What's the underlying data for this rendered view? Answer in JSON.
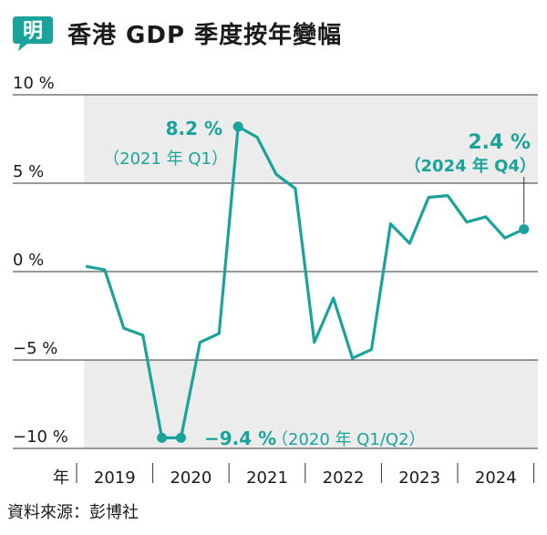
{
  "header": {
    "logo_char": "明",
    "title": "香港 GDP 季度按年變幅"
  },
  "source": "資料來源：彭博社",
  "colors": {
    "line": "#1aa39b",
    "shade": "#ececec",
    "logo": "#1aa39b",
    "text": "#1a1a1a"
  },
  "chart_data": {
    "type": "line",
    "title": "香港 GDP 季度按年變幅",
    "xlabel": "年",
    "ylabel": "",
    "unit": "%",
    "ylim": [
      -10,
      10
    ],
    "yticks": [
      {
        "value": 10,
        "label": "10 %"
      },
      {
        "value": 5,
        "label": "5 %"
      },
      {
        "value": 0,
        "label": "0 %"
      },
      {
        "value": -5,
        "label": "−5 %"
      },
      {
        "value": -10,
        "label": "−10 %"
      }
    ],
    "years": [
      "2019",
      "2020",
      "2021",
      "2022",
      "2023",
      "2024"
    ],
    "x": [
      "2019 Q1",
      "2019 Q2",
      "2019 Q3",
      "2019 Q4",
      "2020 Q1",
      "2020 Q2",
      "2020 Q3",
      "2020 Q4",
      "2021 Q1",
      "2021 Q2",
      "2021 Q3",
      "2021 Q4",
      "2022 Q1",
      "2022 Q2",
      "2022 Q3",
      "2022 Q4",
      "2023 Q1",
      "2023 Q2",
      "2023 Q3",
      "2023 Q4",
      "2024 Q1",
      "2024 Q2",
      "2024 Q3",
      "2024 Q4"
    ],
    "values": [
      0.3,
      0.1,
      -3.2,
      -3.6,
      -9.4,
      -9.4,
      -4.0,
      -3.5,
      8.2,
      7.6,
      5.5,
      4.7,
      -4.0,
      -1.5,
      -4.9,
      -4.4,
      2.7,
      1.6,
      4.2,
      4.3,
      2.8,
      3.1,
      1.9,
      2.4
    ],
    "grid": true,
    "annotations": {
      "peak": {
        "value": "8.2 %",
        "period": "（2021 年 Q1）"
      },
      "trough": {
        "value": "−9.4 %",
        "period": "（2020 年 Q1/Q2）"
      },
      "latest": {
        "value": "2.4 %",
        "period": "（2024 年 Q4）"
      }
    }
  }
}
